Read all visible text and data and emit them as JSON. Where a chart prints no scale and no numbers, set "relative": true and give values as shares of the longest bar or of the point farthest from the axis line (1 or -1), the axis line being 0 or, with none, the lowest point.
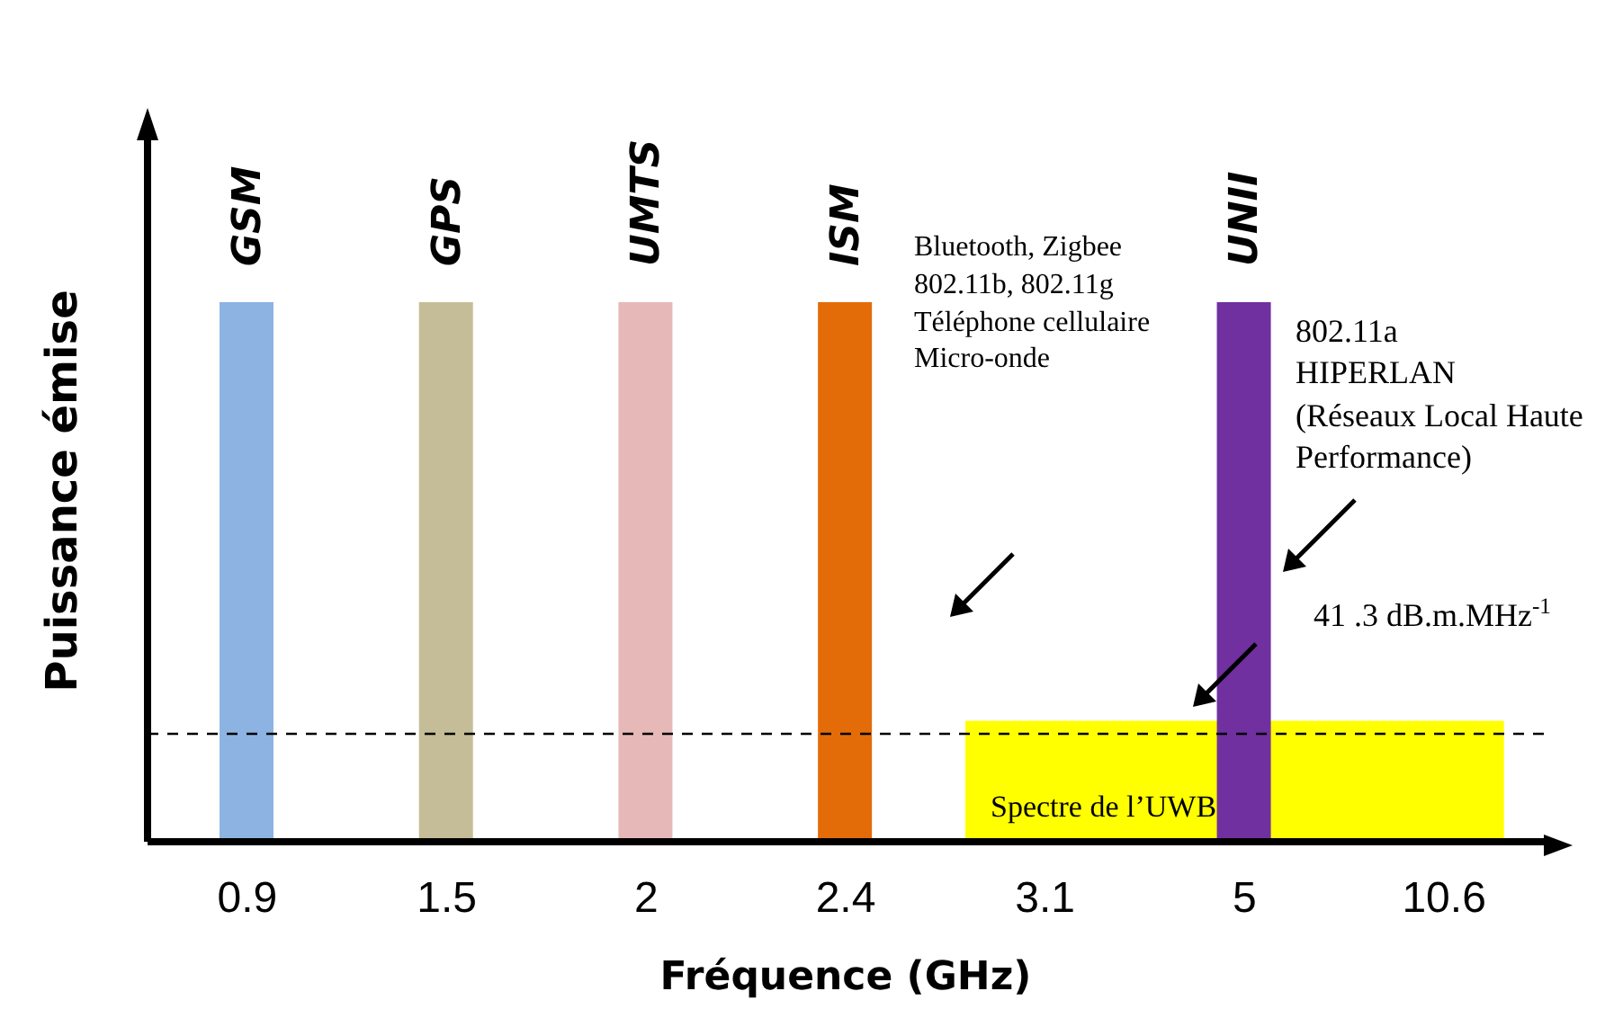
{
  "chart_data": {
    "type": "bar",
    "xlabel": "Fréquence (GHz)",
    "ylabel": "Puissance émise",
    "relative": true,
    "categories": [
      "0.9",
      "1.5",
      "2",
      "2.4",
      "3.1",
      "5",
      "10.6"
    ],
    "series": [
      {
        "values": [
          1,
          1,
          1,
          1,
          null,
          1,
          null
        ],
        "colors": [
          "#8db3e2",
          "#c4bd97",
          "#e6b9b8",
          "#e36c09",
          null,
          "#7030a0",
          null
        ]
      }
    ],
    "bands": [
      {
        "axis": "x",
        "from": "3.1",
        "to": "10.6",
        "label": "Spectre de l’UWB",
        "color": "#ffff00"
      }
    ],
    "ref_lines": [
      {
        "axis": "y",
        "value": 0.2,
        "label": "41 .3 dB.m.MHz$^{-1}$",
        "line_style": "dashed"
      }
    ],
    "annotations": [
      {
        "text": "GSM",
        "x": "0.9",
        "y": 1
      },
      {
        "text": "GPS",
        "x": "1.5",
        "y": 1
      },
      {
        "text": "UMTS",
        "x": "2",
        "y": 1
      },
      {
        "text": "ISM",
        "x": "2.4",
        "y": 1
      },
      {
        "text": "UNII",
        "x": "5",
        "y": 1
      },
      "Bluetooth, Zigbee\n802.11b, 802.11g\nTéléphone cellulaire\nMicro-onde",
      "802.11a\nHIPERLAN\n(Réseaux Local Haute\nPerformance)"
    ],
    "tick_labels": "x"
  }
}
